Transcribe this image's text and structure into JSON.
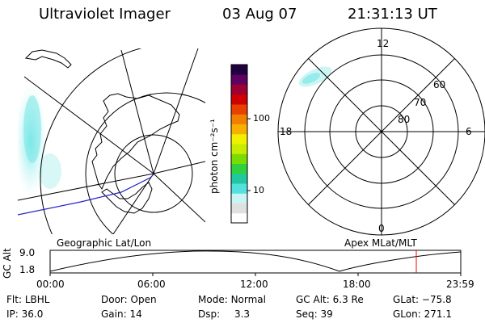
{
  "header": {
    "title": "Ultraviolet Imager",
    "date": "03 Aug 07",
    "time": "21:31:13 UT"
  },
  "colorbar": {
    "unit_label": "photon cm⁻²s⁻¹",
    "ticks": [
      "100",
      "10"
    ],
    "colors": [
      "#ffffff",
      "#e0e0e0",
      "#c8f4f4",
      "#55e0e0",
      "#20c8a0",
      "#30d040",
      "#7adc00",
      "#c8ec00",
      "#f0f000",
      "#f8b000",
      "#f08000",
      "#e84000",
      "#d00000",
      "#a00030",
      "#600060",
      "#200040"
    ]
  },
  "left_map": {
    "label": "Geographic Lat/Lon"
  },
  "right_map": {
    "label": "Apex  MLat/MLT",
    "mlt_labels": {
      "top": "12",
      "right": "6",
      "bottom": "0",
      "left": "18"
    },
    "lat_labels": [
      "60",
      "70",
      "80"
    ]
  },
  "timeline": {
    "ylabel": "GC Alt",
    "y_ticks": [
      "9.0",
      "1.8"
    ],
    "x_ticks": [
      "00:00",
      "06:00",
      "12:00",
      "18:00",
      "23:59"
    ],
    "current_marker_color": "#ff0000"
  },
  "footer": {
    "row1": [
      {
        "label": "Flt:",
        "value": "LBHL"
      },
      {
        "label": "Door:",
        "value": "Open"
      },
      {
        "label": "Mode:",
        "value": "Normal"
      },
      {
        "label": "GC Alt:",
        "value": "6.3 Re"
      },
      {
        "label": "GLat:",
        "value": "−75.8"
      }
    ],
    "row2": [
      {
        "label": "IP:",
        "value": "36.0"
      },
      {
        "label": "Gain:",
        "value": "14"
      },
      {
        "label": "Dsp:",
        "value": "3.3"
      },
      {
        "label": "Seq:",
        "value": "39"
      },
      {
        "label": "GLon:",
        "value": "271.1"
      }
    ]
  }
}
